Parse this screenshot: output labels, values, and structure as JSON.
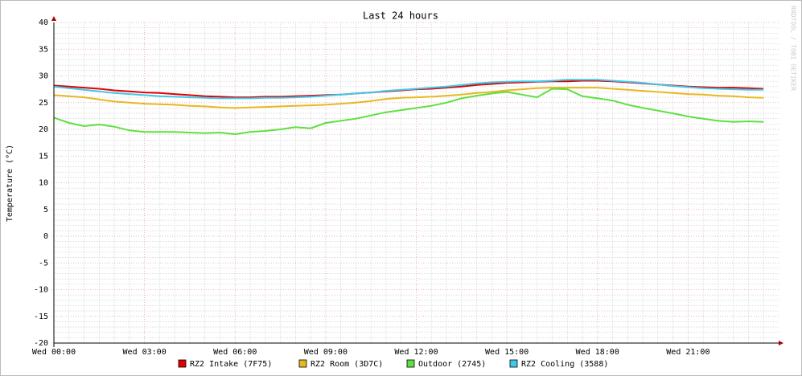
{
  "chart_data": {
    "type": "line",
    "title": "Last 24 hours",
    "y_label": "Temperature (°C)",
    "side_text": "RRDTOOL / TOBI OETIKER",
    "x": [
      0,
      0.5,
      1,
      1.5,
      2,
      2.5,
      3,
      3.5,
      4,
      4.5,
      5,
      5.5,
      6,
      6.5,
      7,
      7.5,
      8,
      8.5,
      9,
      9.5,
      10,
      10.5,
      11,
      11.5,
      12,
      12.5,
      13,
      13.5,
      14,
      14.5,
      15,
      15.5,
      16,
      16.5,
      17,
      17.5,
      18,
      18.5,
      19,
      19.5,
      20,
      20.5,
      21,
      21.5,
      22,
      22.5,
      23,
      23.5
    ],
    "xlim": [
      0,
      24
    ],
    "xticks": [
      {
        "value": 0,
        "label": "Wed 00:00"
      },
      {
        "value": 3,
        "label": "Wed 03:00"
      },
      {
        "value": 6,
        "label": "Wed 06:00"
      },
      {
        "value": 9,
        "label": "Wed 09:00"
      },
      {
        "value": 12,
        "label": "Wed 12:00"
      },
      {
        "value": 15,
        "label": "Wed 15:00"
      },
      {
        "value": 18,
        "label": "Wed 18:00"
      },
      {
        "value": 21,
        "label": "Wed 21:00"
      }
    ],
    "ylim": [
      -20,
      40
    ],
    "yticks": [
      -20,
      -15,
      -10,
      -5,
      0,
      5,
      10,
      15,
      20,
      25,
      30,
      35,
      40
    ],
    "grid": true,
    "series": [
      {
        "name": "RZ2 Intake (7F75)",
        "color": "#e00000",
        "values": [
          28.2,
          28.0,
          27.8,
          27.6,
          27.3,
          27.1,
          26.9,
          26.8,
          26.6,
          26.4,
          26.2,
          26.1,
          26.0,
          26.0,
          26.1,
          26.1,
          26.2,
          26.3,
          26.4,
          26.5,
          26.7,
          26.9,
          27.1,
          27.3,
          27.5,
          27.6,
          27.8,
          28.0,
          28.3,
          28.5,
          28.7,
          28.8,
          28.9,
          29.0,
          29.0,
          29.1,
          29.1,
          29.0,
          28.8,
          28.6,
          28.4,
          28.2,
          28.0,
          27.9,
          27.8,
          27.8,
          27.7,
          27.6
        ]
      },
      {
        "name": "RZ2 Room (3D7C)",
        "color": "#e8b820",
        "values": [
          26.4,
          26.2,
          26.0,
          25.6,
          25.2,
          25.0,
          24.8,
          24.7,
          24.6,
          24.4,
          24.3,
          24.1,
          24.0,
          24.1,
          24.2,
          24.3,
          24.4,
          24.5,
          24.6,
          24.8,
          25.0,
          25.3,
          25.7,
          25.9,
          26.0,
          26.1,
          26.3,
          26.5,
          26.8,
          27.0,
          27.3,
          27.5,
          27.7,
          27.8,
          27.8,
          27.8,
          27.8,
          27.6,
          27.4,
          27.2,
          27.0,
          26.8,
          26.6,
          26.5,
          26.3,
          26.2,
          26.0,
          25.9
        ]
      },
      {
        "name": "Outdoor (2745)",
        "color": "#5ee040",
        "values": [
          22.2,
          21.2,
          20.6,
          20.9,
          20.5,
          19.8,
          19.5,
          19.5,
          19.5,
          19.4,
          19.3,
          19.4,
          19.1,
          19.5,
          19.7,
          20.0,
          20.4,
          20.2,
          21.2,
          21.6,
          22.0,
          22.6,
          23.2,
          23.6,
          24.0,
          24.4,
          25.0,
          25.8,
          26.3,
          26.7,
          27.0,
          26.5,
          26.0,
          27.6,
          27.5,
          26.2,
          25.8,
          25.4,
          24.6,
          24.0,
          23.5,
          23.0,
          22.4,
          22.0,
          21.6,
          21.4,
          21.5,
          21.4
        ]
      },
      {
        "name": "RZ2 Cooling (3588)",
        "color": "#40c8e8",
        "values": [
          28.0,
          27.7,
          27.4,
          27.1,
          26.8,
          26.6,
          26.4,
          26.2,
          26.1,
          26.0,
          25.9,
          25.8,
          25.8,
          25.8,
          25.9,
          25.9,
          26.0,
          26.1,
          26.3,
          26.5,
          26.7,
          26.9,
          27.2,
          27.4,
          27.6,
          27.8,
          28.0,
          28.3,
          28.6,
          28.8,
          28.9,
          29.0,
          29.0,
          29.1,
          29.3,
          29.3,
          29.3,
          29.1,
          28.9,
          28.7,
          28.4,
          28.1,
          27.9,
          27.7,
          27.6,
          27.5,
          27.4,
          27.4
        ]
      }
    ]
  }
}
